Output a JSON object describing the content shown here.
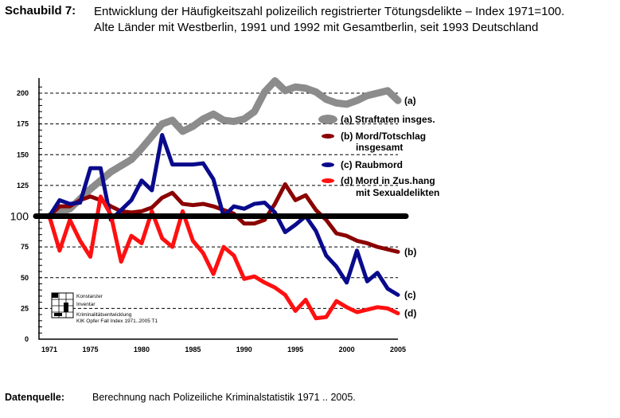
{
  "header": {
    "label": "Schaubild 7:",
    "title_line1": "Entwicklung der Häufigkeitszahl polizeilich registrierter Tötungsdelikte – Index 1971=100.",
    "title_line2": "Alte Länder mit Westberlin, 1991 und 1992 mit Gesamtberlin, seit 1993 Deutschland"
  },
  "footer": {
    "label": "Datenquelle:",
    "text": "Berechnung nach Polizeiliche Kriminalstatistik 1971 .. 2005."
  },
  "watermark": {
    "line1": "Konstanzer",
    "line2": "Inventar",
    "line3": "Kriminalitätsentwicklung",
    "line4": "KIK Opfer Fall Index 1971..2005 T1"
  },
  "chart_data": {
    "type": "line",
    "title": "Entwicklung der Häufigkeitszahl polizeilich registrierter Tötungsdelikte – Index 1971=100",
    "xlabel": "",
    "ylabel": "",
    "x": [
      1971,
      1972,
      1973,
      1974,
      1975,
      1976,
      1977,
      1978,
      1979,
      1980,
      1981,
      1982,
      1983,
      1984,
      1985,
      1986,
      1987,
      1988,
      1989,
      1990,
      1991,
      1992,
      1993,
      1994,
      1995,
      1996,
      1997,
      1998,
      1999,
      2000,
      2001,
      2002,
      2003,
      2004,
      2005
    ],
    "xticks": [
      "1971",
      "1975",
      "1980",
      "1985",
      "1990",
      "1995",
      "2000",
      "2005"
    ],
    "xtick_values": [
      1971,
      1975,
      1980,
      1985,
      1990,
      1995,
      2000,
      2005
    ],
    "yticks": [
      "0",
      "25",
      "50",
      "75",
      "100",
      "125",
      "150",
      "175",
      "200"
    ],
    "ytick_values": [
      0,
      25,
      50,
      75,
      100,
      125,
      150,
      175,
      200
    ],
    "ylim": [
      0,
      210
    ],
    "xlim": [
      1971,
      2005
    ],
    "grid": "horizontal-dashed",
    "reference_line": {
      "value": 100,
      "label": "100",
      "color": "#000000"
    },
    "legend_position": "right",
    "series": [
      {
        "key": "a",
        "name": "(a) Straftaten insges.",
        "end_label": "(a)",
        "color": "#8c8c8c",
        "values": [
          100,
          103,
          106,
          114,
          122,
          129,
          136,
          141,
          146,
          155,
          165,
          175,
          178,
          169,
          173,
          179,
          183,
          178,
          177,
          179,
          185,
          201,
          210,
          202,
          205,
          204,
          201,
          195,
          192,
          191,
          194,
          198,
          200,
          202,
          194
        ]
      },
      {
        "key": "b",
        "name": "(b) Mord/Totschlag insgesamt",
        "legend_line1": "(b) Mord/Totschlag",
        "legend_line2": "insgesamt",
        "end_label": "(b)",
        "color": "#8b0000",
        "values": [
          100,
          108,
          108,
          113,
          116,
          113,
          108,
          104,
          103,
          104,
          107,
          115,
          119,
          110,
          109,
          110,
          108,
          105,
          102,
          94,
          94,
          97,
          110,
          126,
          113,
          117,
          105,
          97,
          86,
          84,
          80,
          78,
          75,
          73,
          71
        ]
      },
      {
        "key": "c",
        "name": "(c) Raubmord",
        "end_label": "(c)",
        "color": "#0a0a8c",
        "values": [
          100,
          113,
          110,
          111,
          139,
          139,
          97,
          105,
          113,
          129,
          121,
          166,
          142,
          142,
          142,
          143,
          130,
          100,
          108,
          106,
          110,
          111,
          103,
          87,
          93,
          100,
          88,
          68,
          59,
          46,
          72,
          47,
          54,
          41,
          36
        ]
      },
      {
        "key": "d",
        "name": "(d) Mord in Zus.hang mit Sexualdelikten",
        "legend_line1": "(d) Mord in Zus.hang",
        "legend_line2": "mit Sexualdelikten",
        "end_label": "(d)",
        "color": "#ff1010",
        "values": [
          100,
          72,
          97,
          80,
          67,
          116,
          101,
          63,
          84,
          78,
          104,
          82,
          75,
          104,
          80,
          70,
          53,
          75,
          68,
          49,
          51,
          46,
          42,
          36,
          23,
          32,
          17,
          18,
          31,
          26,
          22,
          24,
          26,
          25,
          21
        ]
      }
    ]
  }
}
